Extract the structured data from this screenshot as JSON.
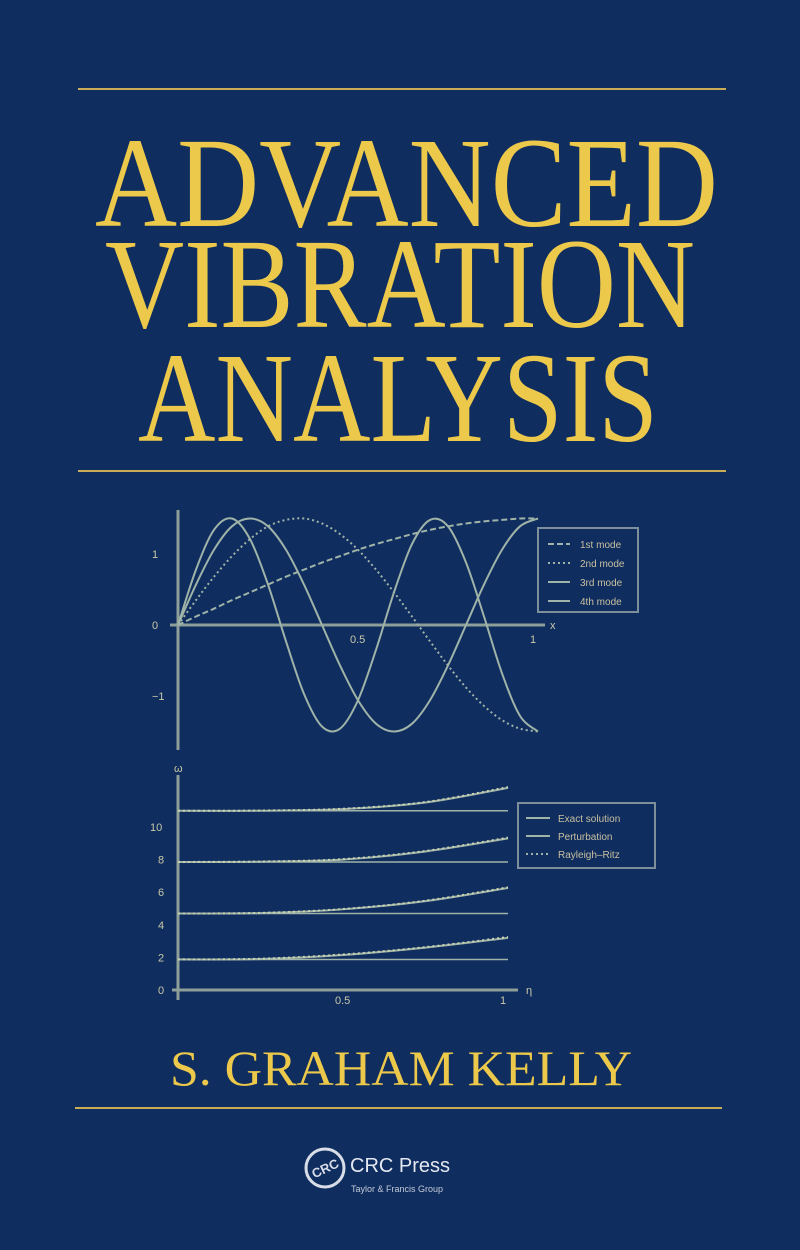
{
  "cover": {
    "title_lines": [
      "ADVANCED",
      "VIBRATION",
      "ANALYSIS"
    ],
    "author": "S. GRAHAM KELLY",
    "publisher": {
      "logo": "CRC",
      "name": "CRC Press",
      "group": "Taylor & Francis Group"
    },
    "colors": {
      "background": "#0f2d5f",
      "title": "#ecc94b",
      "rule": "#c9ad55",
      "plot_lines": "#9fb3a8"
    }
  },
  "chart_data": [
    {
      "type": "line",
      "xlabel": "x",
      "xlim": [
        0,
        1
      ],
      "ylim": [
        -1.6,
        1.6
      ],
      "xticks": [
        "0.5",
        "1"
      ],
      "yticks": [
        "1",
        "0",
        "−1"
      ],
      "ytick_values": [
        1,
        0,
        -1
      ],
      "xtick_values": [
        0.5,
        1
      ],
      "legend": "top-right",
      "x": [
        0,
        0.05,
        0.1,
        0.15,
        0.2,
        0.25,
        0.3,
        0.35,
        0.4,
        0.45,
        0.5,
        0.55,
        0.6,
        0.65,
        0.7,
        0.75,
        0.8,
        0.85,
        0.9,
        0.95,
        1
      ],
      "series": [
        {
          "name": "1st mode",
          "style": "long-dash",
          "values": [
            0,
            0.12,
            0.23,
            0.35,
            0.46,
            0.57,
            0.68,
            0.78,
            0.88,
            0.97,
            1.06,
            1.14,
            1.21,
            1.28,
            1.34,
            1.39,
            1.43,
            1.46,
            1.48,
            1.5,
            1.5
          ]
        },
        {
          "name": "2nd mode",
          "style": "dotted",
          "values": [
            0,
            0.35,
            0.68,
            0.97,
            1.21,
            1.39,
            1.48,
            1.5,
            1.43,
            1.28,
            1.06,
            0.78,
            0.46,
            0.12,
            -0.23,
            -0.57,
            -0.88,
            -1.14,
            -1.34,
            -1.46,
            -1.5
          ]
        },
        {
          "name": "3rd mode",
          "style": "solid",
          "values": [
            0,
            0.57,
            1.06,
            1.39,
            1.5,
            1.39,
            1.06,
            0.57,
            0,
            -0.57,
            -1.06,
            -1.39,
            -1.5,
            -1.39,
            -1.06,
            -0.57,
            0,
            0.57,
            1.06,
            1.39,
            1.5
          ]
        },
        {
          "name": "4th mode",
          "style": "solid",
          "values": [
            0,
            0.78,
            1.34,
            1.5,
            1.21,
            0.57,
            -0.23,
            -0.97,
            -1.43,
            -1.46,
            -1.06,
            -0.35,
            0.46,
            1.14,
            1.48,
            1.39,
            0.88,
            0.12,
            -0.68,
            -1.28,
            -1.5
          ]
        }
      ]
    },
    {
      "type": "line",
      "xlabel": "η",
      "ylabel": "ω",
      "xlim": [
        0,
        1
      ],
      "ylim": [
        0,
        13
      ],
      "xticks": [
        "0.5",
        "1"
      ],
      "xtick_values": [
        0.5,
        1
      ],
      "yticks": [
        "0",
        "2",
        "4",
        "6",
        "8",
        "10"
      ],
      "ytick_values": [
        0,
        2,
        4,
        6,
        8,
        10
      ],
      "legend": "right",
      "x": [
        0,
        0.25,
        0.5,
        0.75,
        1
      ],
      "series": [
        {
          "name": "Exact solution",
          "style": "solid",
          "curves": [
            [
              1.875,
              1.9,
              2.15,
              2.6,
              3.2
            ],
            [
              4.694,
              4.72,
              4.95,
              5.45,
              6.26
            ],
            [
              7.855,
              7.87,
              8.0,
              8.5,
              9.3
            ],
            [
              10.996,
              11.0,
              11.1,
              11.5,
              12.4
            ]
          ]
        },
        {
          "name": "Perturbation",
          "style": "solid-thin",
          "curves": [
            [
              1.875,
              1.875,
              1.875,
              1.875,
              1.875
            ],
            [
              4.694,
              4.694,
              4.694,
              4.694,
              4.694
            ],
            [
              7.855,
              7.855,
              7.855,
              7.855,
              7.855
            ],
            [
              10.996,
              10.996,
              10.996,
              10.996,
              10.996
            ]
          ]
        },
        {
          "name": "Rayleigh–Ritz",
          "style": "dotted",
          "curves": [
            [
              1.875,
              1.92,
              2.18,
              2.63,
              3.25
            ],
            [
              4.694,
              4.73,
              4.97,
              5.48,
              6.3
            ],
            [
              7.855,
              7.88,
              8.03,
              8.53,
              9.35
            ],
            [
              10.996,
              11.01,
              11.12,
              11.53,
              12.45
            ]
          ]
        }
      ]
    }
  ]
}
